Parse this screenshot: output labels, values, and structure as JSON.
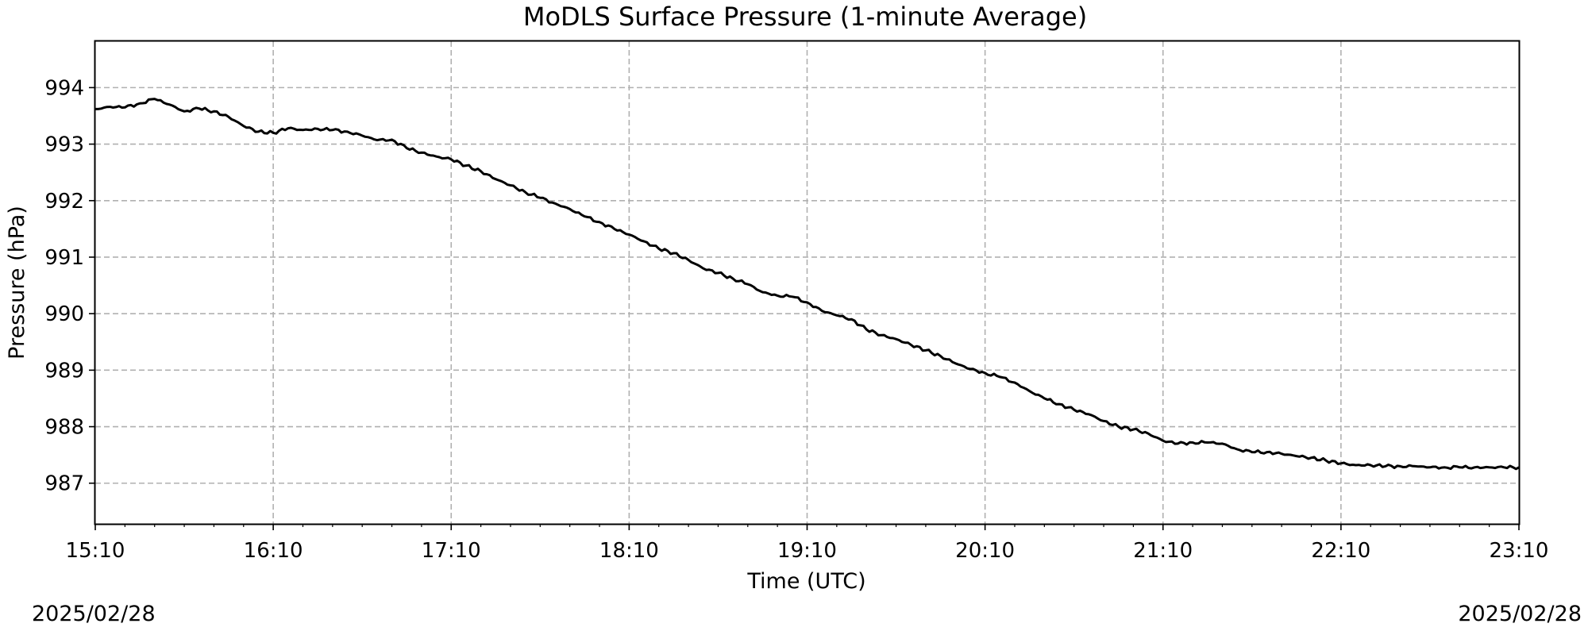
{
  "chart_data": {
    "type": "line",
    "title": "MoDLS Surface Pressure (1-minute Average)",
    "xlabel": "Time (UTC)",
    "ylabel": "Pressure (hPa)",
    "x_tick_labels": [
      "15:10",
      "16:10",
      "17:10",
      "18:10",
      "19:10",
      "20:10",
      "21:10",
      "22:10",
      "23:10"
    ],
    "y_tick_labels": [
      "994",
      "993",
      "992",
      "991",
      "990",
      "989",
      "988",
      "987"
    ],
    "xlim": [
      "15:10",
      "23:10"
    ],
    "ylim": [
      986.28,
      994.82
    ],
    "grid": true,
    "grid_style": "dashed",
    "line_color": "#000000",
    "grid_color": "#b0b0b0",
    "series": [
      {
        "x": [
          "15:10",
          "15:15",
          "15:20",
          "15:25",
          "15:30",
          "15:35",
          "15:40",
          "15:45",
          "15:50",
          "15:55",
          "16:00",
          "16:05",
          "16:10",
          "16:15",
          "16:20",
          "16:25",
          "16:30",
          "16:35",
          "16:40",
          "16:45",
          "16:50",
          "16:55",
          "17:00",
          "17:05",
          "17:10",
          "17:15",
          "17:20",
          "17:25",
          "17:30",
          "17:35",
          "17:40",
          "17:45",
          "17:50",
          "17:55",
          "18:00",
          "18:05",
          "18:10",
          "18:15",
          "18:20",
          "18:25",
          "18:30",
          "18:35",
          "18:40",
          "18:45",
          "18:50",
          "18:55",
          "19:00",
          "19:05",
          "19:10",
          "19:15",
          "19:20",
          "19:25",
          "19:30",
          "19:35",
          "19:40",
          "19:45",
          "19:50",
          "19:55",
          "20:00",
          "20:05",
          "20:10",
          "20:15",
          "20:20",
          "20:25",
          "20:30",
          "20:35",
          "20:40",
          "20:45",
          "20:50",
          "20:55",
          "21:00",
          "21:05",
          "21:10",
          "21:15",
          "21:20",
          "21:25",
          "21:30",
          "21:35",
          "21:40",
          "21:45",
          "21:50",
          "21:55",
          "22:00",
          "22:05",
          "22:10",
          "22:15",
          "22:20",
          "22:25",
          "22:30",
          "22:35",
          "22:40",
          "22:45",
          "22:50",
          "22:55",
          "23:00",
          "23:05",
          "23:10"
        ],
        "y": [
          993.62,
          993.66,
          993.65,
          993.72,
          993.8,
          993.7,
          993.58,
          993.63,
          993.58,
          993.48,
          993.32,
          993.22,
          993.2,
          993.28,
          993.25,
          993.27,
          993.25,
          993.22,
          993.15,
          993.07,
          993.08,
          992.93,
          992.85,
          992.78,
          992.73,
          992.62,
          992.52,
          992.38,
          992.27,
          992.15,
          992.05,
          991.95,
          991.85,
          991.72,
          991.62,
          991.5,
          991.4,
          991.28,
          991.15,
          991.07,
          990.95,
          990.8,
          990.72,
          990.62,
          990.52,
          990.38,
          990.32,
          990.3,
          990.2,
          990.05,
          989.97,
          989.9,
          989.72,
          989.62,
          989.55,
          989.45,
          989.35,
          989.25,
          989.12,
          989.02,
          988.95,
          988.88,
          988.78,
          988.63,
          988.5,
          988.4,
          988.3,
          988.22,
          988.1,
          988.0,
          987.95,
          987.88,
          987.75,
          987.7,
          987.72,
          987.72,
          987.7,
          987.6,
          987.55,
          987.55,
          987.52,
          987.48,
          987.45,
          987.4,
          987.35,
          987.32,
          987.32,
          987.3,
          987.3,
          987.3,
          987.28,
          987.28,
          987.28,
          987.28,
          987.28,
          987.28,
          987.28
        ]
      }
    ]
  },
  "footer": {
    "start_date": "2025/02/28",
    "end_date": "2025/02/28"
  }
}
